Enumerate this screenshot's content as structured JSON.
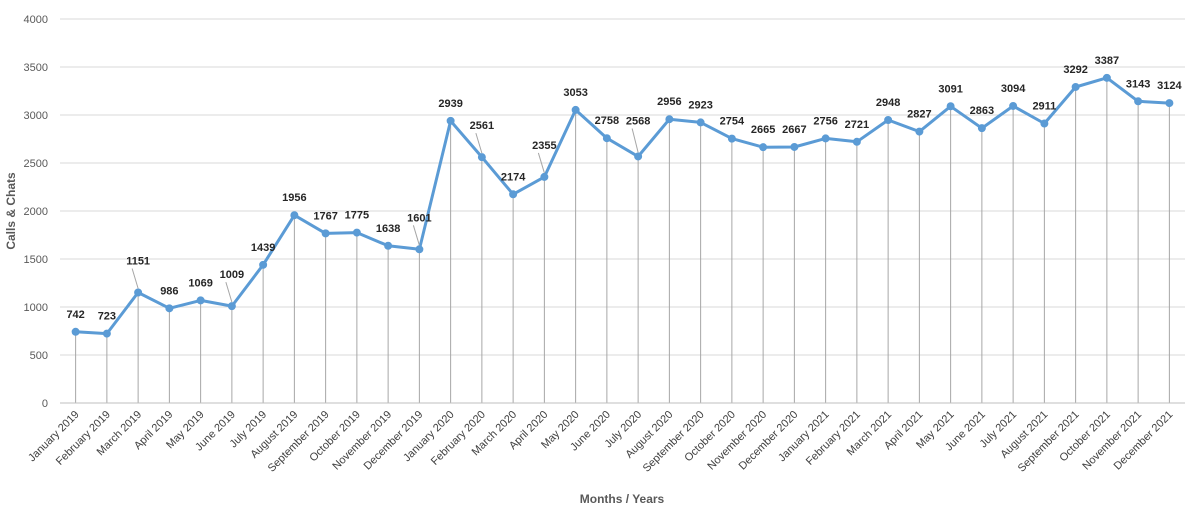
{
  "chart_data": {
    "type": "line",
    "title": "",
    "xlabel": "Months / Years",
    "ylabel": "Calls  & Chats",
    "ylim": [
      0,
      4000
    ],
    "yticks": [
      0,
      500,
      1000,
      1500,
      2000,
      2500,
      3000,
      3500,
      4000
    ],
    "grid": "horizontal",
    "legend": "none",
    "drop_lines": true,
    "data_labels": true,
    "line_color": "#5B9BD5",
    "categories": [
      "January 2019",
      "February 2019",
      "March 2019",
      "April 2019",
      "May 2019",
      "June 2019",
      "July 2019",
      "August 2019",
      "September 2019",
      "October 2019",
      "November 2019",
      "December 2019",
      "January 2020",
      "February 2020",
      "March 2020",
      "April 2020",
      "May 2020",
      "June 2020",
      "July 2020",
      "August 2020",
      "September 2020",
      "October 2020",
      "November 2020",
      "December 2020",
      "January 2021",
      "February 2021",
      "March 2021",
      "April 2021",
      "May 2021",
      "June 2021",
      "July 2021",
      "August 2021",
      "September 2021",
      "October 2021",
      "November 2021",
      "December 2021"
    ],
    "series": [
      {
        "values": [
          742,
          723,
          1151,
          986,
          1069,
          1009,
          1439,
          1956,
          1767,
          1775,
          1638,
          1601,
          2939,
          2561,
          2174,
          2355,
          3053,
          2758,
          2568,
          2956,
          2923,
          2754,
          2665,
          2667,
          2756,
          2721,
          2948,
          2827,
          3091,
          2863,
          3094,
          2911,
          3292,
          3387,
          3143,
          3124
        ]
      }
    ]
  }
}
